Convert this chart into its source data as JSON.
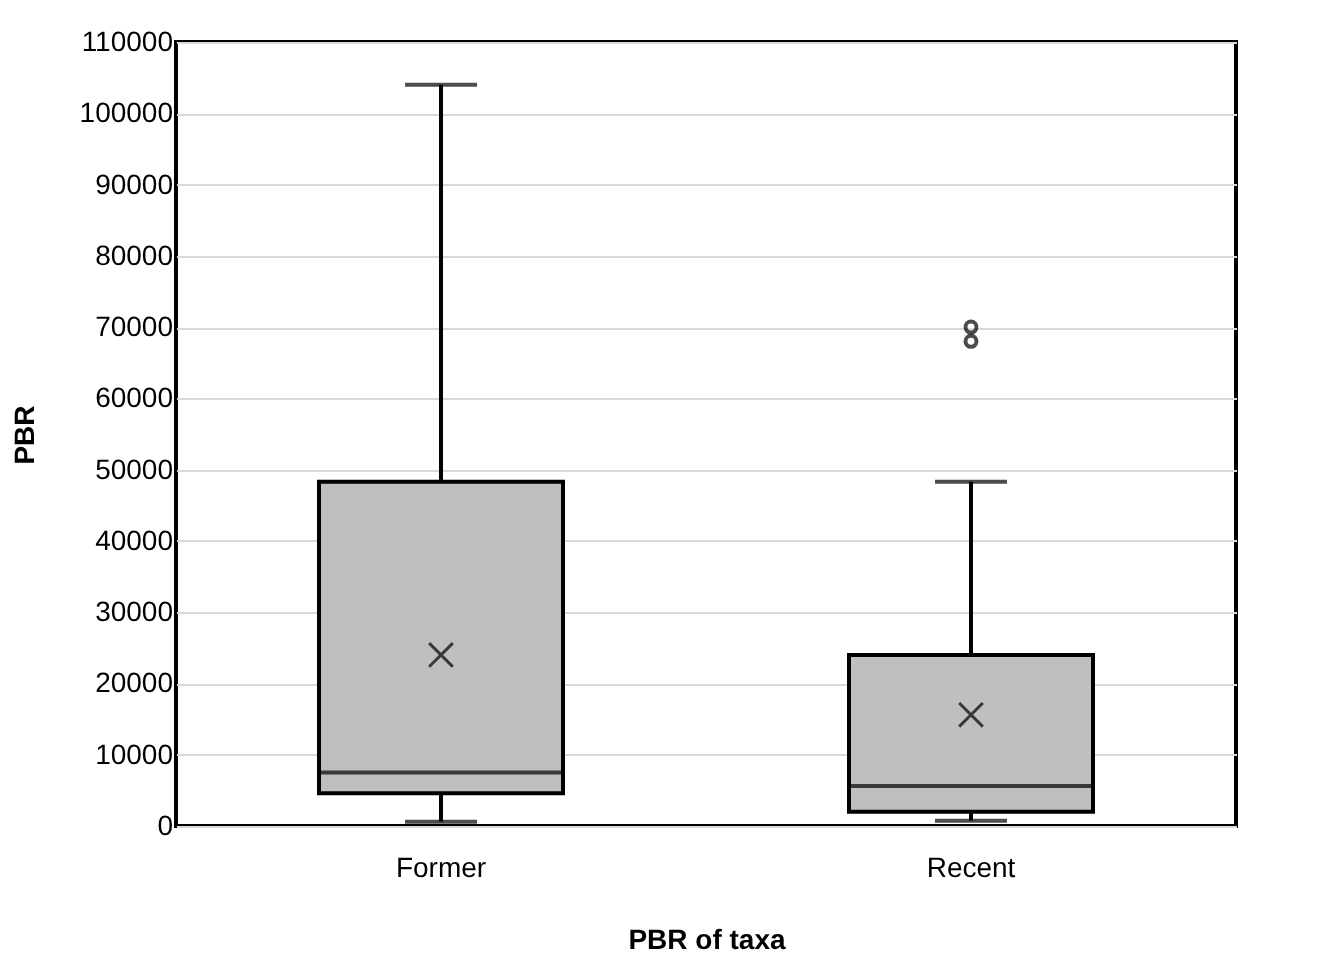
{
  "chart_data": {
    "type": "box",
    "xlabel": "PBR of taxa",
    "ylabel": "PBR",
    "categories": [
      "Former",
      "Recent"
    ],
    "series": [
      {
        "color": "#bfbfbf",
        "boxes": [
          {
            "low": 600,
            "q1": 4600,
            "median": 7500,
            "q3": 48300,
            "high": 104000,
            "mean": 24000
          },
          {
            "low": 750,
            "q1": 2000,
            "median": 5600,
            "q3": 24000,
            "high": 48300,
            "mean": 15600,
            "outliers": [
              68000,
              70000
            ]
          }
        ]
      }
    ],
    "ylim": [
      0,
      110000
    ],
    "yticks": [
      0,
      10000,
      20000,
      30000,
      40000,
      50000,
      60000,
      70000,
      80000,
      90000,
      100000,
      110000
    ],
    "grid": "y",
    "marker": "cross"
  }
}
